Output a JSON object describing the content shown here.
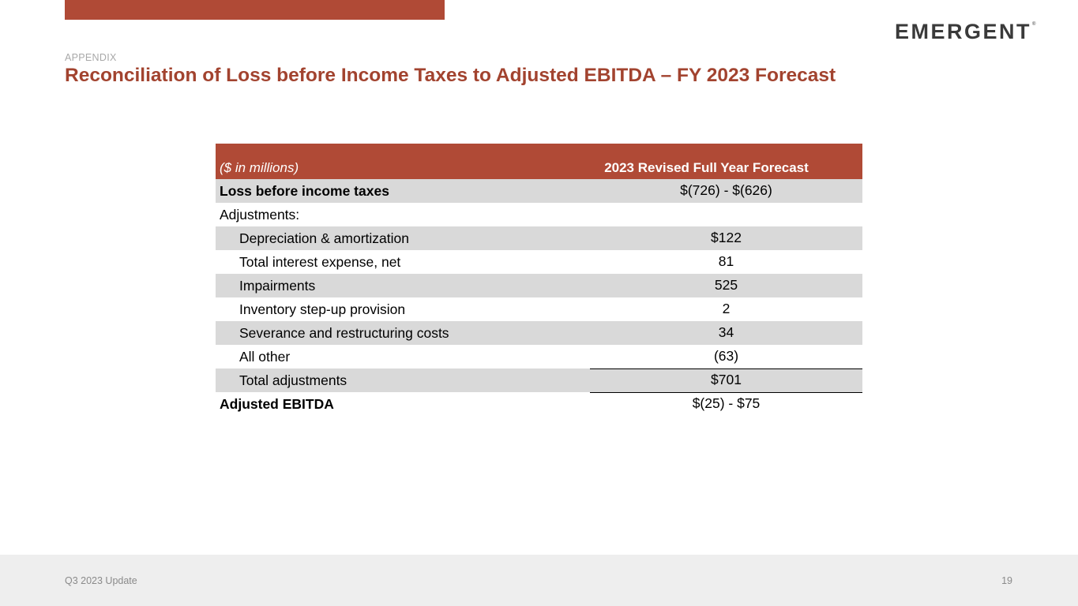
{
  "brand": {
    "logo": "EMERGENT",
    "tm": "®",
    "accent": "#b04a36",
    "title_color": "#a2432f"
  },
  "header": {
    "section": "APPENDIX",
    "title": "Reconciliation of Loss before Income Taxes to Adjusted EBITDA – FY 2023 Forecast"
  },
  "table": {
    "col_label": "($ in millions)",
    "col_value": "2023 Revised Full Year Forecast",
    "rows": [
      {
        "label": "Loss before income taxes",
        "value": "$(726) - $(626)"
      },
      {
        "label": "Adjustments:",
        "value": ""
      },
      {
        "label": "Depreciation & amortization",
        "value": "$122"
      },
      {
        "label": "Total interest expense, net",
        "value": "81"
      },
      {
        "label": "Impairments",
        "value": "525"
      },
      {
        "label": "Inventory step-up provision",
        "value": "2"
      },
      {
        "label": "Severance and restructuring costs",
        "value": "34"
      },
      {
        "label": "All other",
        "value": "(63)"
      },
      {
        "label": "Total adjustments",
        "value": "$701"
      },
      {
        "label": "Adjusted EBITDA",
        "value": "$(25) - $75"
      }
    ]
  },
  "footer": {
    "left": "Q3 2023 Update",
    "page": "19"
  }
}
